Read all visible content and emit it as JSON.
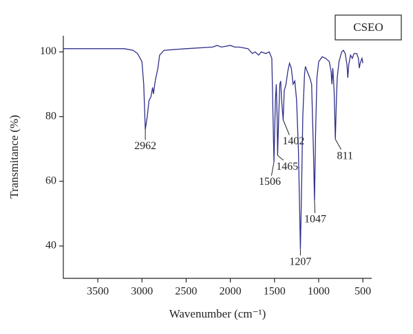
{
  "chart_data": {
    "type": "line",
    "xlabel": "Wavenumber (cm⁻¹)",
    "ylabel": "Transmitance (%)",
    "xlim": [
      3890,
      400
    ],
    "ylim": [
      30,
      105
    ],
    "xticks": [
      3500,
      3000,
      2500,
      2000,
      1500,
      1000,
      500
    ],
    "yticks": [
      40,
      60,
      80,
      100
    ],
    "x": [
      3890,
      3500,
      3200,
      3100,
      3050,
      3000,
      2980,
      2962,
      2940,
      2920,
      2900,
      2880,
      2870,
      2850,
      2820,
      2800,
      2750,
      2500,
      2200,
      2150,
      2100,
      2000,
      1950,
      1900,
      1800,
      1750,
      1720,
      1680,
      1650,
      1600,
      1560,
      1530,
      1506,
      1490,
      1480,
      1470,
      1465,
      1450,
      1440,
      1430,
      1420,
      1402,
      1390,
      1370,
      1350,
      1330,
      1310,
      1290,
      1270,
      1250,
      1230,
      1215,
      1207,
      1195,
      1180,
      1160,
      1150,
      1130,
      1100,
      1080,
      1060,
      1047,
      1035,
      1020,
      1000,
      960,
      920,
      880,
      860,
      850,
      840,
      825,
      811,
      800,
      790,
      770,
      740,
      720,
      700,
      680,
      670,
      660,
      640,
      620,
      600,
      570,
      550,
      540,
      530,
      510,
      500
    ],
    "series": [
      {
        "name": "CSEO",
        "color": "#2e2e8a",
        "values": [
          101,
          101,
          101,
          100.5,
          99.5,
          97,
          90,
          76,
          80,
          85,
          86,
          89,
          87,
          91,
          95,
          99,
          100.5,
          101,
          101.5,
          102,
          101.5,
          102,
          101.5,
          101.5,
          101,
          99.5,
          100,
          99,
          100,
          99.5,
          100,
          98,
          66,
          85,
          90,
          80,
          68,
          82,
          90,
          91,
          85,
          79,
          88,
          90,
          94,
          96.5,
          95,
          90,
          91,
          85,
          70,
          50,
          39,
          55,
          80,
          93,
          95.5,
          94,
          92,
          90,
          70,
          54,
          75,
          92,
          97,
          98.5,
          98,
          97,
          94,
          90,
          95,
          88,
          73,
          85,
          92,
          97,
          100,
          100.5,
          99.5,
          96,
          92,
          96,
          99,
          98,
          99.5,
          99.5,
          98,
          95,
          96.5,
          98,
          96.5
        ]
      }
    ],
    "annotations": [
      {
        "text": "2962",
        "x": 2962,
        "y": 76
      },
      {
        "text": "1506",
        "x": 1506,
        "y": 66
      },
      {
        "text": "1465",
        "x": 1465,
        "y": 68
      },
      {
        "text": "1402",
        "x": 1402,
        "y": 79
      },
      {
        "text": "1207",
        "x": 1207,
        "y": 39
      },
      {
        "text": "1047",
        "x": 1047,
        "y": 54
      },
      {
        "text": "811",
        "x": 811,
        "y": 73
      }
    ],
    "legend": "upper right"
  }
}
